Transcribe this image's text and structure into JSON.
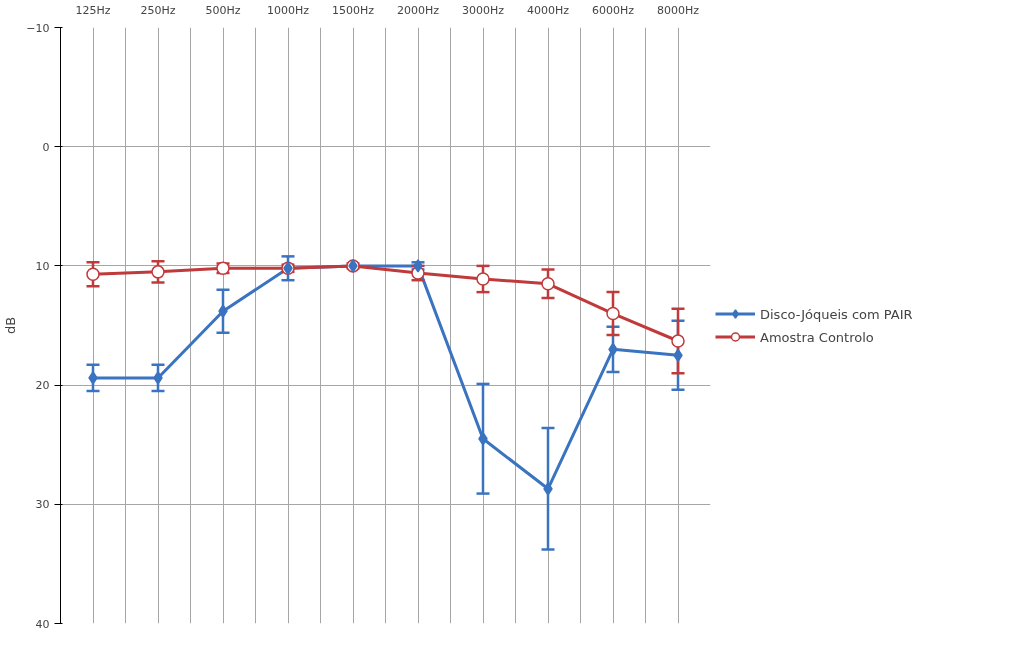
{
  "chart_data": {
    "type": "line",
    "ylabel": "dB",
    "categories": [
      "125Hz",
      "250Hz",
      "500Hz",
      "1000Hz",
      "1500Hz",
      "2000Hz",
      "3000Hz",
      "4000Hz",
      "6000Hz",
      "8000Hz"
    ],
    "ylim": [
      40,
      -10
    ],
    "yticks": [
      -10,
      0,
      10,
      20,
      30,
      40
    ],
    "grid": true,
    "legend": "right",
    "series": [
      {
        "name": "Disco-Jóqueis com PAIR",
        "color": "#3a73c0",
        "marker": "diamond",
        "values": [
          19.4,
          19.4,
          13.8,
          10.2,
          10,
          10,
          24.5,
          28.7,
          17,
          17.5
        ],
        "errors": [
          1.1,
          1.1,
          1.8,
          1,
          null,
          0.3,
          4.6,
          5.1,
          1.9,
          2.9
        ]
      },
      {
        "name": "Amostra Controlo",
        "color": "#c0393b",
        "marker": "circle",
        "values": [
          10.7,
          10.5,
          10.2,
          10.2,
          10,
          10.6,
          11.1,
          11.5,
          14,
          16.3
        ],
        "errors": [
          1,
          0.9,
          0.4,
          0.3,
          0.2,
          0.6,
          1.1,
          1.2,
          1.8,
          2.7
        ]
      }
    ]
  }
}
